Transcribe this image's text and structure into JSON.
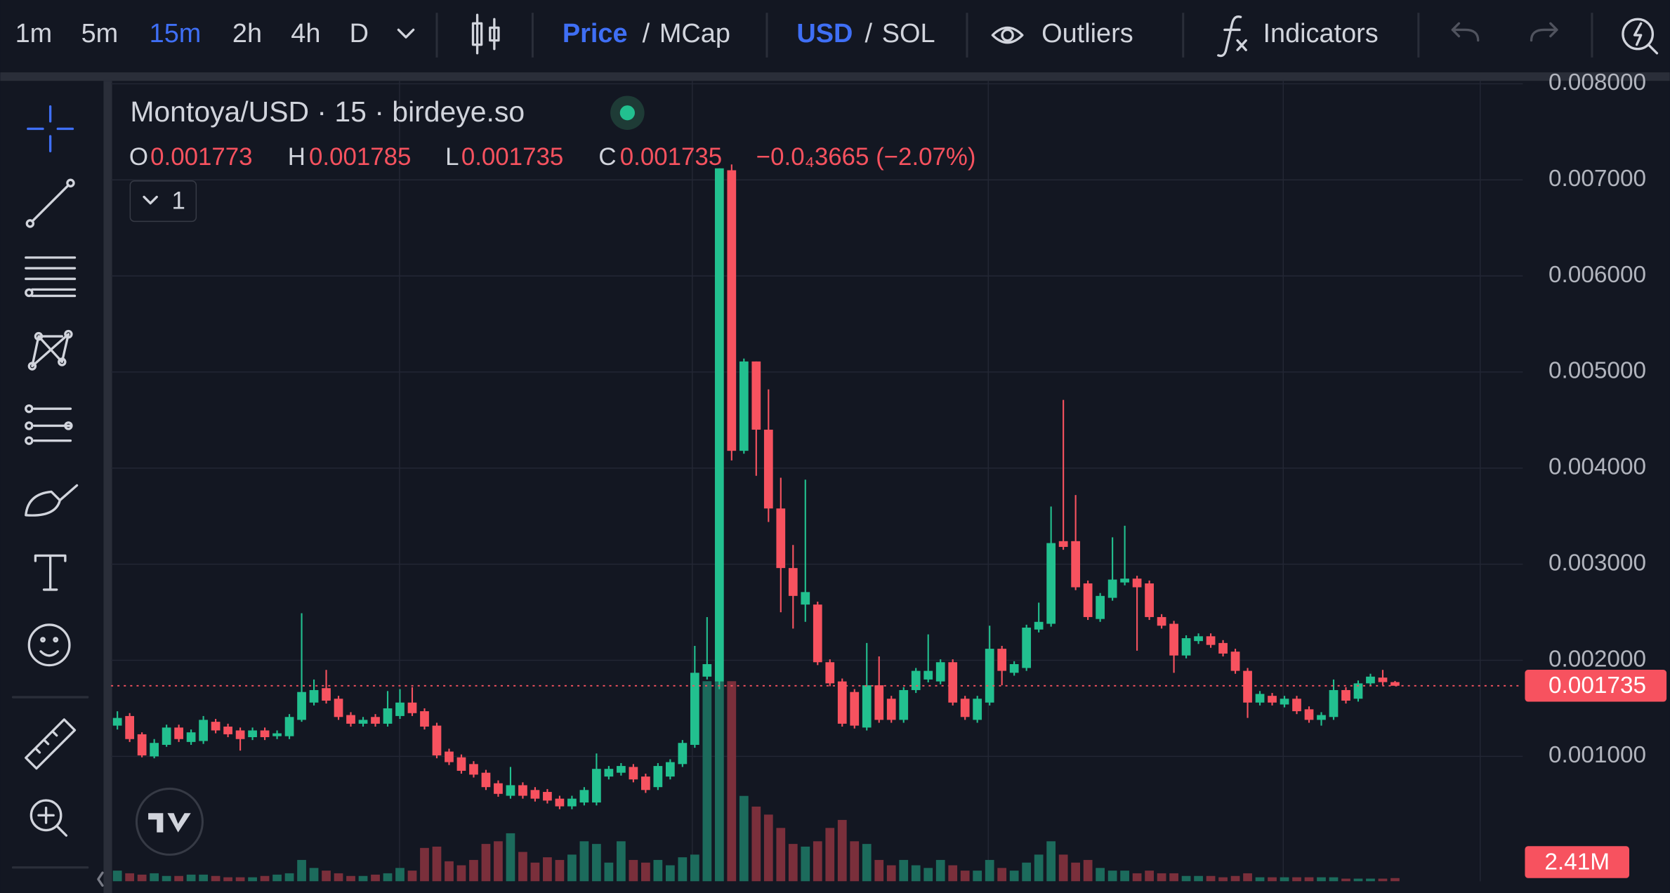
{
  "toolbar": {
    "timeframes": [
      "1m",
      "5m",
      "15m",
      "2h",
      "4h",
      "D"
    ],
    "active_timeframe_index": 2,
    "price_mode": [
      "Price",
      "MCap"
    ],
    "currency": [
      "USD",
      "SOL"
    ],
    "separator": "/",
    "outliers": "Outliers",
    "indicators": "Indicators",
    "active_color": "#3f6ff5"
  },
  "chart_data": {
    "type": "candlestick",
    "title": "Montoya/USD · 15 · birdeye.so",
    "ohlc_letters": [
      "O",
      "H",
      "L",
      "C"
    ],
    "change_label": "−0.0₄3665 (−2.07%)",
    "indicator_count": 1,
    "open": [
      0.00132,
      0.00142,
      0.00123,
      0.001,
      0.00112,
      0.0013,
      0.00115,
      0.00116,
      0.00136,
      0.00131,
      0.00127,
      0.0012,
      0.00127,
      0.00121,
      0.00121,
      0.00138,
      0.00156,
      0.00171,
      0.0016,
      0.00143,
      0.00134,
      0.00141,
      0.00134,
      0.00142,
      0.00156,
      0.00147,
      0.00132,
      0.00105,
      0.00099,
      0.00092,
      0.00083,
      0.00072,
      0.00059,
      0.0007,
      0.00065,
      0.00063,
      0.00056,
      0.00048,
      0.00052,
      0.00052,
      0.00079,
      0.00083,
      0.00089,
      0.00079,
      0.00068,
      0.00079,
      0.00092,
      0.00112,
      0.00183,
      0.00178,
      0.0071,
      0.00418,
      0.00511,
      0.0044,
      0.00358,
      0.00296,
      0.00258,
      0.00258,
      0.00198,
      0.00178,
      0.00167,
      0.0013,
      0.00174,
      0.0016,
      0.00138,
      0.00169,
      0.0018,
      0.00178,
      0.00198,
      0.0016,
      0.00138,
      0.00156,
      0.00212,
      0.00187,
      0.00192,
      0.00232,
      0.00238,
      0.00324,
      0.00324,
      0.0028,
      0.00243,
      0.00265,
      0.00281,
      0.00285,
      0.0028,
      0.00245,
      0.00238,
      0.00205,
      0.0022,
      0.00225,
      0.00218,
      0.00209,
      0.00189,
      0.00156,
      0.00163,
      0.00154,
      0.0016,
      0.00149,
      0.00138,
      0.00141,
      0.00169,
      0.0016,
      0.00176,
      0.00182,
      0.001773
    ],
    "high": [
      0.00147,
      0.00145,
      0.00125,
      0.00118,
      0.00133,
      0.00133,
      0.00128,
      0.00142,
      0.00139,
      0.00134,
      0.0013,
      0.0013,
      0.0013,
      0.00127,
      0.00144,
      0.00249,
      0.0018,
      0.0019,
      0.00163,
      0.00146,
      0.00141,
      0.00144,
      0.00168,
      0.0017,
      0.00172,
      0.0015,
      0.00135,
      0.00108,
      0.00102,
      0.00095,
      0.00086,
      0.00075,
      0.00089,
      0.00073,
      0.00068,
      0.00066,
      0.00059,
      0.00059,
      0.00068,
      0.00103,
      0.0009,
      0.00093,
      0.00092,
      0.00082,
      0.00093,
      0.00097,
      0.00117,
      0.00215,
      0.00245,
      0.00712,
      0.00716,
      0.00514,
      0.00511,
      0.00482,
      0.0039,
      0.0032,
      0.00388,
      0.00261,
      0.00201,
      0.00181,
      0.0017,
      0.00218,
      0.00204,
      0.00163,
      0.00172,
      0.00192,
      0.00227,
      0.00201,
      0.00201,
      0.00163,
      0.00163,
      0.00236,
      0.00215,
      0.00199,
      0.00237,
      0.0026,
      0.0036,
      0.00471,
      0.00372,
      0.00283,
      0.0027,
      0.00328,
      0.0034,
      0.00288,
      0.00283,
      0.00248,
      0.00241,
      0.00226,
      0.00228,
      0.00228,
      0.00221,
      0.00212,
      0.00192,
      0.00168,
      0.00166,
      0.00163,
      0.00163,
      0.00152,
      0.00146,
      0.0018,
      0.00172,
      0.00179,
      0.00186,
      0.0019,
      0.001785
    ],
    "low": [
      0.00128,
      0.00115,
      0.00099,
      0.00098,
      0.0011,
      0.00115,
      0.00112,
      0.00113,
      0.00124,
      0.0012,
      0.00106,
      0.00117,
      0.00117,
      0.00118,
      0.00118,
      0.00136,
      0.00153,
      0.00155,
      0.00138,
      0.00131,
      0.00131,
      0.00131,
      0.00131,
      0.00139,
      0.00142,
      0.00128,
      0.00098,
      0.00091,
      0.00082,
      0.00078,
      0.00065,
      0.00058,
      0.00056,
      0.00056,
      0.00053,
      0.00051,
      0.00045,
      0.00045,
      0.00049,
      0.00049,
      0.00076,
      0.0008,
      0.00073,
      0.00062,
      0.00065,
      0.00076,
      0.00089,
      0.00109,
      0.0018,
      0.0017,
      0.00408,
      0.00415,
      0.00392,
      0.00344,
      0.0025,
      0.00233,
      0.0024,
      0.00195,
      0.00173,
      0.00131,
      0.00129,
      0.00127,
      0.00135,
      0.00135,
      0.00135,
      0.00166,
      0.00177,
      0.00175,
      0.00153,
      0.00138,
      0.00135,
      0.00153,
      0.00174,
      0.00184,
      0.00189,
      0.00229,
      0.00235,
      0.00315,
      0.00273,
      0.00242,
      0.0024,
      0.00262,
      0.00278,
      0.0021,
      0.00242,
      0.00233,
      0.00187,
      0.00202,
      0.00217,
      0.00213,
      0.00204,
      0.00186,
      0.0014,
      0.00153,
      0.00153,
      0.00151,
      0.00144,
      0.00135,
      0.00132,
      0.00138,
      0.00155,
      0.00157,
      0.00173,
      0.00174,
      0.001735
    ],
    "close": [
      0.0014,
      0.00118,
      0.00101,
      0.00114,
      0.0013,
      0.00118,
      0.00125,
      0.00138,
      0.00127,
      0.00123,
      0.00118,
      0.00127,
      0.0012,
      0.00124,
      0.00141,
      0.00167,
      0.00169,
      0.00158,
      0.00141,
      0.00134,
      0.00138,
      0.00134,
      0.0015,
      0.00156,
      0.00145,
      0.00131,
      0.00101,
      0.00094,
      0.00085,
      0.00081,
      0.00068,
      0.00061,
      0.0007,
      0.00059,
      0.00056,
      0.00054,
      0.00048,
      0.00056,
      0.00065,
      0.00087,
      0.00087,
      0.0009,
      0.00076,
      0.00065,
      0.0009,
      0.00094,
      0.00114,
      0.00187,
      0.00196,
      0.00712,
      0.00418,
      0.00511,
      0.0044,
      0.00358,
      0.00296,
      0.00267,
      0.00271,
      0.00198,
      0.00176,
      0.00134,
      0.00132,
      0.00174,
      0.00138,
      0.00138,
      0.00169,
      0.00189,
      0.00189,
      0.00198,
      0.00156,
      0.00141,
      0.0016,
      0.00212,
      0.00189,
      0.00196,
      0.00234,
      0.0024,
      0.00322,
      0.00318,
      0.00276,
      0.00245,
      0.00267,
      0.00284,
      0.00285,
      0.00276,
      0.00245,
      0.00236,
      0.00205,
      0.00223,
      0.00225,
      0.00216,
      0.00207,
      0.00189,
      0.00156,
      0.00165,
      0.00156,
      0.0016,
      0.00147,
      0.00138,
      0.00143,
      0.00169,
      0.00158,
      0.00176,
      0.00183,
      0.001773,
      0.001735
    ],
    "volume": [
      8,
      6,
      5,
      6,
      4,
      4,
      5,
      5,
      4,
      3,
      3,
      3,
      4,
      5,
      6,
      16,
      10,
      8,
      6,
      4,
      4,
      5,
      6,
      10,
      8,
      25,
      26,
      15,
      12,
      16,
      28,
      30,
      36,
      22,
      14,
      18,
      16,
      20,
      30,
      28,
      14,
      30,
      16,
      14,
      16,
      12,
      18,
      20,
      150,
      150,
      150,
      64,
      56,
      50,
      40,
      28,
      26,
      30,
      40,
      46,
      30,
      28,
      16,
      12,
      16,
      12,
      10,
      16,
      12,
      8,
      8,
      16,
      10,
      8,
      14,
      20,
      30,
      20,
      14,
      16,
      10,
      8,
      8,
      6,
      8,
      6,
      6,
      4,
      4,
      4,
      3,
      4,
      6,
      3,
      3,
      3,
      3,
      3,
      3,
      3,
      2,
      2,
      2,
      2,
      2.41
    ],
    "volume_label": "2.41M",
    "volume_lim": [
      0,
      600
    ],
    "up_color": "#22c08f",
    "down_color": "#f7525f",
    "volume_up_color": "#1c6b5c",
    "volume_down_color": "#7a2f3b",
    "ylim": [
      -0.0003,
      0.00803
    ],
    "yticks": [
      {
        "value": 0.001,
        "label": "0.001000"
      },
      {
        "value": 0.002,
        "label": "0.002000"
      },
      {
        "value": 0.003,
        "label": "0.003000"
      },
      {
        "value": 0.004,
        "label": "0.004000"
      },
      {
        "value": 0.005,
        "label": "0.005000"
      },
      {
        "value": 0.006,
        "label": "0.006000"
      },
      {
        "value": 0.007,
        "label": "0.007000"
      },
      {
        "value": 0.008,
        "label": "0.008000"
      }
    ],
    "grid": true
  }
}
